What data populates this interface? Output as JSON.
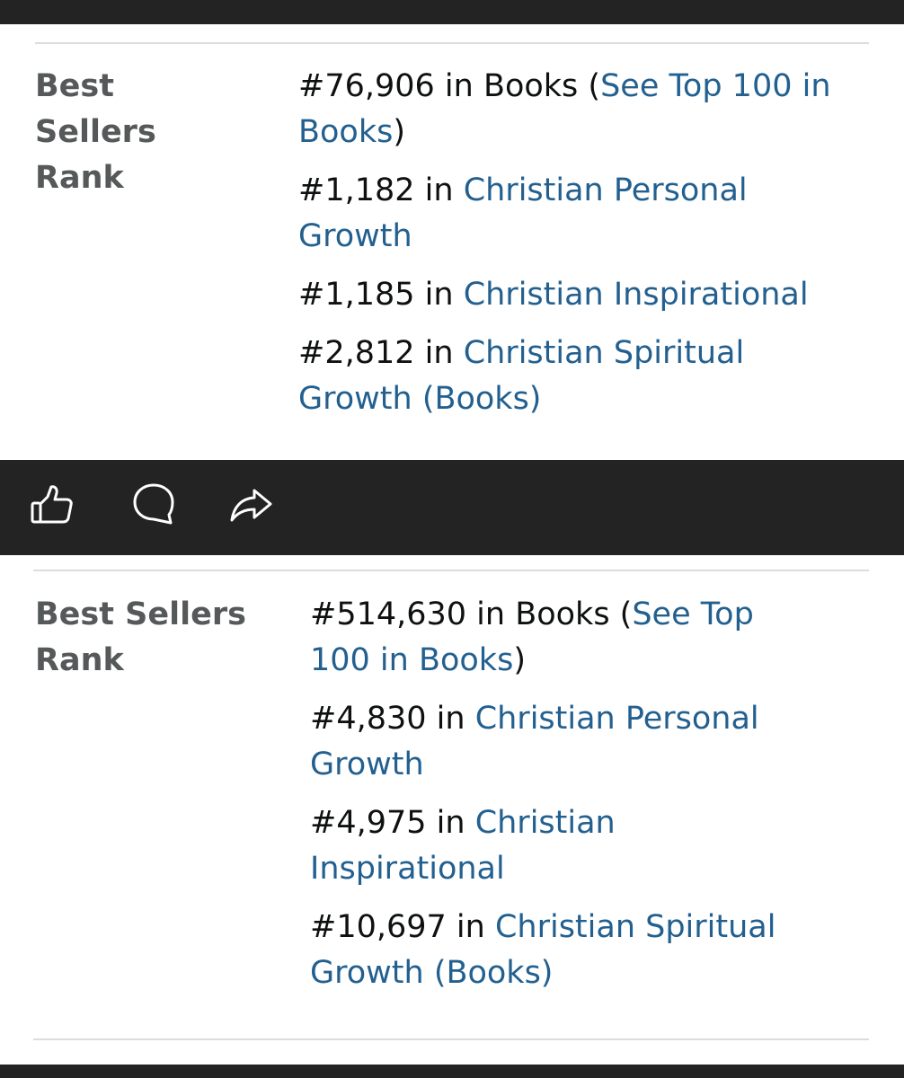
{
  "sections": [
    {
      "label": "Best Sellers Rank",
      "ranks": [
        {
          "prefix": "#76,906 in Books (",
          "link": "See Top 100 in Books",
          "suffix": ")"
        },
        {
          "prefix": "#1,182 in ",
          "link": "Christian Personal Growth",
          "suffix": ""
        },
        {
          "prefix": "#1,185 in ",
          "link": "Christian Inspirational",
          "suffix": ""
        },
        {
          "prefix": "#2,812 in ",
          "link": "Christian Spiritual Growth (Books)",
          "suffix": ""
        }
      ]
    },
    {
      "label": "Best Sellers Rank",
      "ranks": [
        {
          "prefix": "#514,630 in Books (",
          "link": "See Top 100 in Books",
          "suffix": ")"
        },
        {
          "prefix": "#4,830 in ",
          "link": "Christian Personal Growth",
          "suffix": ""
        },
        {
          "prefix": "#4,975 in ",
          "link": "Christian Inspirational",
          "suffix": ""
        },
        {
          "prefix": "#10,697 in ",
          "link": "Christian Spiritual Growth (Books)",
          "suffix": ""
        }
      ]
    }
  ],
  "actions": {
    "icons": [
      "thumbs-up-icon",
      "comment-icon",
      "share-icon"
    ]
  },
  "colors": {
    "link": "#23608f",
    "label": "#565959",
    "text": "#0f1111",
    "dark_bar": "#232324"
  }
}
